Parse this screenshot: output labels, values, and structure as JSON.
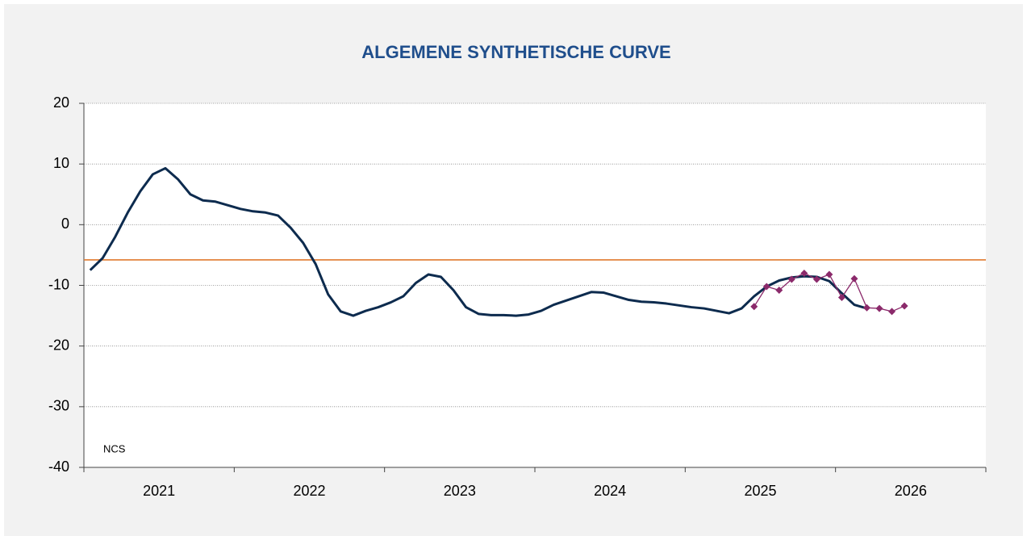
{
  "chart_data": {
    "type": "line",
    "title": "ALGEMENE SYNTHETISCHE CURVE",
    "annotation": "NCS",
    "categories": [
      "2021",
      null,
      null,
      null,
      null,
      null,
      null,
      null,
      null,
      null,
      null,
      null,
      "2022",
      null,
      null,
      null,
      null,
      null,
      null,
      null,
      null,
      null,
      null,
      null,
      "2023",
      null,
      null,
      null,
      null,
      null,
      null,
      null,
      null,
      null,
      null,
      null,
      "2024",
      null,
      null,
      null,
      null,
      null,
      null,
      null,
      null,
      null,
      null,
      null,
      "2025",
      null,
      null,
      null,
      null,
      null,
      null,
      null,
      null,
      null,
      null,
      null,
      "2026",
      null,
      null,
      null,
      null,
      null,
      null,
      null,
      null,
      null,
      null,
      null
    ],
    "series": [
      {
        "color": "#0d2b4e",
        "values": [
          -7.5,
          -5.5,
          -2,
          2,
          5.5,
          8.3,
          9.3,
          7.5,
          5,
          4,
          3.8,
          3.2,
          2.6,
          2.2,
          2.0,
          1.5,
          -0.5,
          -3,
          -6.5,
          -11.5,
          -14.3,
          -15,
          -14.2,
          -13.6,
          -12.8,
          -11.8,
          -9.6,
          -8.2,
          -8.6,
          -10.8,
          -13.6,
          -14.7,
          -14.9,
          -14.9,
          -15,
          -14.8,
          -14.2,
          -13.2,
          -12.5,
          -11.8,
          -11.1,
          -11.2,
          -11.8,
          -12.4,
          -12.7,
          -12.8,
          -13,
          -13.3,
          -13.6,
          -13.8,
          -14.2,
          -14.6,
          -13.8,
          -11.8,
          -10.2,
          -9.2,
          -8.7,
          -8.5,
          -8.6,
          -9.3,
          -11.3,
          -13.2,
          -13.8,
          null,
          null,
          null,
          null,
          null,
          null,
          null,
          null,
          null
        ]
      },
      {
        "color": "#8b2a6b",
        "marker": "diamond",
        "values": [
          null,
          null,
          null,
          null,
          null,
          null,
          null,
          null,
          null,
          null,
          null,
          null,
          null,
          null,
          null,
          null,
          null,
          null,
          null,
          null,
          null,
          null,
          null,
          null,
          null,
          null,
          null,
          null,
          null,
          null,
          null,
          null,
          null,
          null,
          null,
          null,
          null,
          null,
          null,
          null,
          null,
          null,
          null,
          null,
          null,
          null,
          null,
          null,
          null,
          null,
          null,
          null,
          null,
          -13.5,
          -10.2,
          -10.8,
          -9,
          -8,
          -9,
          -8.2,
          -12,
          -8.9,
          -13.7,
          -13.8,
          -14.3,
          -13.4,
          null,
          null,
          null,
          null,
          null,
          null
        ]
      }
    ],
    "reference_line": {
      "value": -5.8,
      "color": "#e07a2e"
    },
    "ylim": [
      -40,
      20
    ],
    "yticks": [
      -40,
      -30,
      -20,
      -10,
      0,
      10,
      20
    ],
    "grid": true
  }
}
